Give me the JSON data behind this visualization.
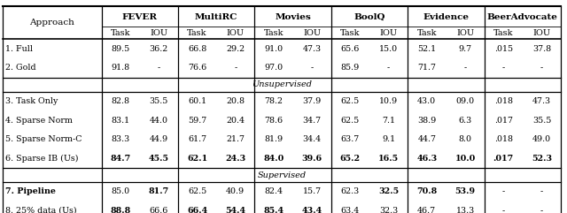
{
  "group_headers": [
    "FEVER",
    "MultiRC",
    "Movies",
    "BoolQ",
    "Evidence",
    "BeerAdvocate"
  ],
  "rows": [
    {
      "label": "1. Full",
      "values": [
        "89.5",
        "36.2",
        "66.8",
        "29.2",
        "91.0",
        "47.3",
        "65.6",
        "15.0",
        "52.1",
        "9.7",
        ".015",
        "37.8"
      ],
      "bold": []
    },
    {
      "label": "2. Gold",
      "values": [
        "91.8",
        "-",
        "76.6",
        "-",
        "97.0",
        "-",
        "85.9",
        "-",
        "71.7",
        "-",
        "-",
        "-"
      ],
      "bold": []
    },
    {
      "label": "__unsupervised__"
    },
    {
      "label": "3. Task Only",
      "values": [
        "82.8",
        "35.5",
        "60.1",
        "20.8",
        "78.2",
        "37.9",
        "62.5",
        "10.9",
        "43.0",
        "09.0",
        ".018",
        "47.3"
      ],
      "bold": []
    },
    {
      "label": "4. Sparse Norm",
      "values": [
        "83.1",
        "44.0",
        "59.7",
        "20.4",
        "78.6",
        "34.7",
        "62.5",
        "7.1",
        "38.9",
        "6.3",
        ".017",
        "35.5"
      ],
      "bold": []
    },
    {
      "label": "5. Sparse Norm-C",
      "values": [
        "83.3",
        "44.9",
        "61.7",
        "21.7",
        "81.9",
        "34.4",
        "63.7",
        "9.1",
        "44.7",
        "8.0",
        ".018",
        "49.0"
      ],
      "bold": []
    },
    {
      "label": "6. Sparse IB (Us)",
      "values": [
        "84.7",
        "45.5",
        "62.1",
        "24.3",
        "84.0",
        "39.6",
        "65.2",
        "16.5",
        "46.3",
        "10.0",
        ".017",
        "52.3"
      ],
      "bold": [
        0,
        1,
        2,
        3,
        4,
        5,
        6,
        7,
        8,
        9,
        10,
        11
      ]
    },
    {
      "label": "__supervised__"
    },
    {
      "label": "7. Pipeline",
      "values": [
        "85.0",
        "81.7",
        "62.5",
        "40.9",
        "82.4",
        "15.7",
        "62.3",
        "32.5",
        "70.8",
        "53.9",
        "-",
        "-"
      ],
      "bold": [
        1,
        7,
        8,
        9
      ]
    },
    {
      "label": "8. 25% data (Us)",
      "values": [
        "88.8",
        "66.6",
        "66.4",
        "54.4",
        "85.4",
        "43.4",
        "63.4",
        "32.3",
        "46.7",
        "13.3",
        "-",
        "-"
      ],
      "bold": [
        0,
        2,
        3,
        4,
        5
      ]
    }
  ],
  "bold_label_rows": [
    6,
    8,
    9
  ],
  "background": "#ffffff"
}
